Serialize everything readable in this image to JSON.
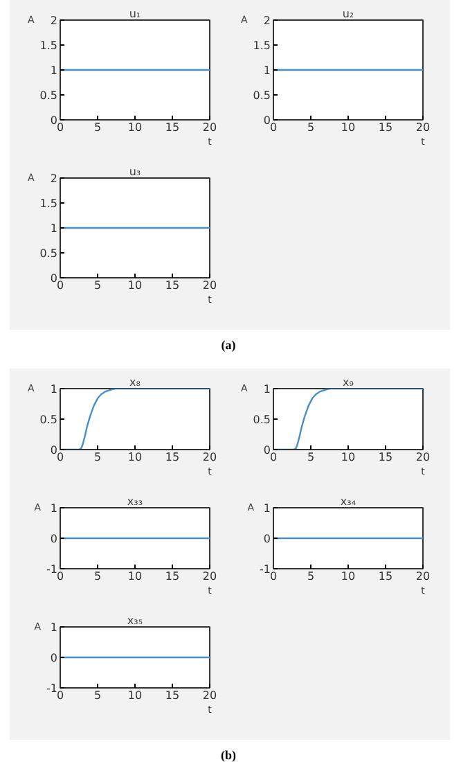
{
  "chart_data": [
    {
      "type": "line",
      "title": "u₁",
      "xlabel": "t",
      "ylabel": "A",
      "color": "#4a90c8",
      "x": [
        0,
        20
      ],
      "values": [
        1,
        1
      ],
      "xlim": [
        0,
        20
      ],
      "xticks": [
        0,
        5,
        10,
        15,
        20
      ],
      "ylim": [
        0,
        2
      ],
      "yticks": [
        0,
        0.5,
        1,
        1.5,
        2
      ]
    },
    {
      "type": "line",
      "title": "u₂",
      "xlabel": "t",
      "ylabel": "A",
      "color": "#4a90c8",
      "x": [
        0,
        20
      ],
      "values": [
        1,
        1
      ],
      "xlim": [
        0,
        20
      ],
      "xticks": [
        0,
        5,
        10,
        15,
        20
      ],
      "ylim": [
        0,
        2
      ],
      "yticks": [
        0,
        0.5,
        1,
        1.5,
        2
      ]
    },
    {
      "type": "line",
      "title": "u₃",
      "xlabel": "t",
      "ylabel": "A",
      "color": "#4a90c8",
      "x": [
        0,
        20
      ],
      "values": [
        1,
        1
      ],
      "xlim": [
        0,
        20
      ],
      "xticks": [
        0,
        5,
        10,
        15,
        20
      ],
      "ylim": [
        0,
        2
      ],
      "yticks": [
        0,
        0.5,
        1,
        1.5,
        2
      ],
      "annotations": [
        "(a)"
      ]
    },
    {
      "type": "line",
      "title": "x₈",
      "xlabel": "t",
      "ylabel": "A",
      "color": "#4a90c8",
      "x": [
        0,
        2.5,
        2.8,
        3,
        3.3,
        3.6,
        4,
        4.5,
        5,
        5.5,
        6,
        6.5,
        7,
        7.5,
        8,
        20
      ],
      "values": [
        0,
        0,
        0.02,
        0.08,
        0.22,
        0.38,
        0.55,
        0.72,
        0.84,
        0.91,
        0.95,
        0.97,
        0.99,
        1,
        1,
        1
      ],
      "xlim": [
        0,
        20
      ],
      "xticks": [
        0,
        5,
        10,
        15,
        20
      ],
      "ylim": [
        0,
        1
      ],
      "yticks": [
        0,
        0.5,
        1
      ]
    },
    {
      "type": "line",
      "title": "x₉",
      "xlabel": "t",
      "ylabel": "A",
      "color": "#4a90c8",
      "x": [
        0,
        2.7,
        3,
        3.2,
        3.5,
        3.8,
        4.2,
        4.7,
        5.2,
        5.7,
        6.2,
        6.7,
        7.2,
        7.7,
        8.2,
        20
      ],
      "values": [
        0,
        0,
        0.02,
        0.08,
        0.22,
        0.38,
        0.55,
        0.72,
        0.84,
        0.91,
        0.95,
        0.97,
        0.99,
        1,
        1,
        1
      ],
      "xlim": [
        0,
        20
      ],
      "xticks": [
        0,
        5,
        10,
        15,
        20
      ],
      "ylim": [
        0,
        1
      ],
      "yticks": [
        0,
        0.5,
        1
      ]
    },
    {
      "type": "line",
      "title": "x₃₃",
      "xlabel": "t",
      "ylabel": "A",
      "color": "#4a90c8",
      "x": [
        0,
        20
      ],
      "values": [
        0,
        0
      ],
      "xlim": [
        0,
        20
      ],
      "xticks": [
        0,
        5,
        10,
        15,
        20
      ],
      "ylim": [
        -1,
        1
      ],
      "yticks": [
        -1,
        0,
        1
      ]
    },
    {
      "type": "line",
      "title": "x₃₄",
      "xlabel": "t",
      "ylabel": "A",
      "color": "#4a90c8",
      "x": [
        0,
        20
      ],
      "values": [
        0,
        0
      ],
      "xlim": [
        0,
        20
      ],
      "xticks": [
        0,
        5,
        10,
        15,
        20
      ],
      "ylim": [
        -1,
        1
      ],
      "yticks": [
        -1,
        0,
        1
      ]
    },
    {
      "type": "line",
      "title": "x₃₅",
      "xlabel": "t",
      "ylabel": "A",
      "color": "#4a90c8",
      "x": [
        0,
        20
      ],
      "values": [
        0,
        0
      ],
      "xlim": [
        0,
        20
      ],
      "xticks": [
        0,
        5,
        10,
        15,
        20
      ],
      "ylim": [
        -1,
        1
      ],
      "yticks": [
        -1,
        0,
        1
      ],
      "annotations": [
        "(b)"
      ]
    }
  ]
}
